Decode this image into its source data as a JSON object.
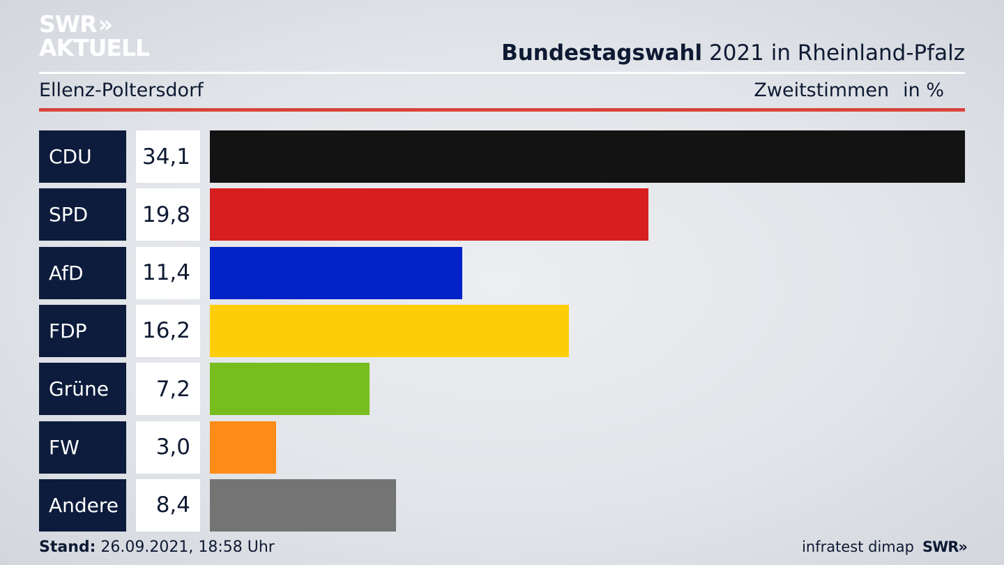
{
  "header": {
    "logo_line1": "SWR",
    "logo_chevrons": "»",
    "logo_line2": "AKTUELL",
    "title_bold": "Bundestagswahl",
    "title_rest": " 2021 in Rheinland-Pfalz",
    "region": "Ellenz-Poltersdorf",
    "subtitle": "Zweitstimmen",
    "unit": "in %"
  },
  "colors": {
    "label_bg": "#0d1c3c",
    "accent_red_rule": "#d9443b"
  },
  "chart_data": {
    "type": "bar",
    "orientation": "horizontal",
    "categories": [
      "CDU",
      "SPD",
      "AfD",
      "FDP",
      "Grüne",
      "FW",
      "Andere"
    ],
    "values": [
      34.1,
      19.8,
      11.4,
      16.2,
      7.2,
      3.0,
      8.4
    ],
    "value_labels": [
      "34,1",
      "19,8",
      "11,4",
      "16,2",
      "7,2",
      "3,0",
      "8,4"
    ],
    "colors": [
      "#131313",
      "#d71f1f",
      "#0222c8",
      "#fdcd0a",
      "#77bd1d",
      "#fd8b17",
      "#747474"
    ],
    "title": "Bundestagswahl 2021 in Rheinland-Pfalz",
    "xlim": [
      0,
      34.1
    ],
    "grid": false,
    "legend": "none"
  },
  "footer": {
    "stand_label": "Stand:",
    "stand_value": " 26.09.2021, 18:58 Uhr",
    "source": "infratest dimap",
    "brand": "SWR",
    "brand_chevrons": "»"
  }
}
